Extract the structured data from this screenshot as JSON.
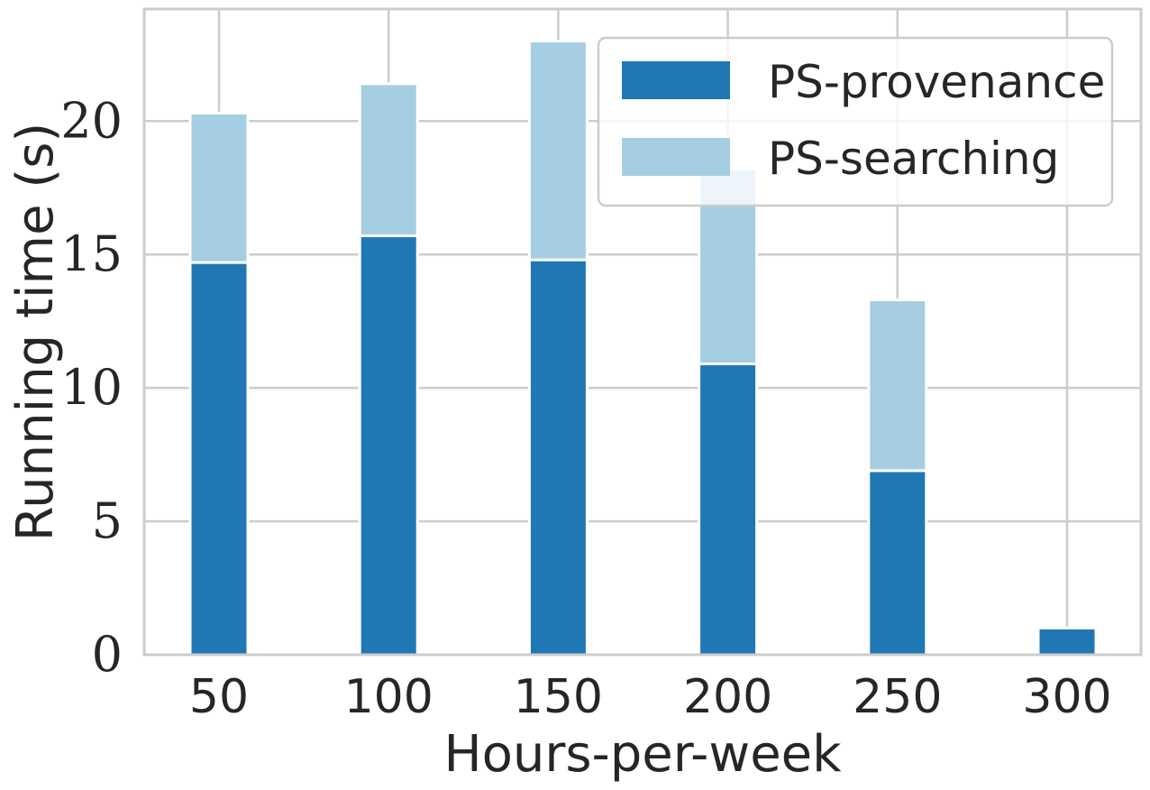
{
  "chart_data": {
    "type": "bar",
    "stacked": true,
    "categories": [
      "50",
      "100",
      "150",
      "200",
      "250",
      "300"
    ],
    "series": [
      {
        "name": "PS-provenance",
        "color": "#1f78b4",
        "values": [
          14.7,
          15.7,
          14.8,
          10.9,
          6.9,
          1.0
        ]
      },
      {
        "name": "PS-searching",
        "color": "#a6cee3",
        "values": [
          5.6,
          5.7,
          8.2,
          7.3,
          6.4,
          0.0
        ]
      }
    ],
    "xlabel": "Hours-per-week",
    "ylabel": "Running time (s)",
    "ylim": [
      0,
      24.2
    ],
    "yticks": [
      0,
      5,
      10,
      15,
      20
    ],
    "grid": true,
    "legend_position": "top-right"
  }
}
